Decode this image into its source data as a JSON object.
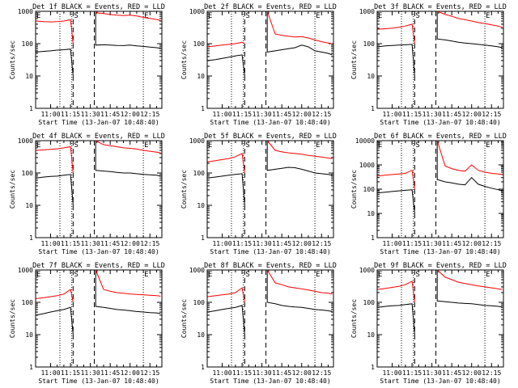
{
  "colors": {
    "events": "#000000",
    "lld": "#ff0000",
    "background": "#ffffff"
  },
  "shared": {
    "x_tick_labels": [
      "11:00",
      "11:15",
      "11:30",
      "11:45",
      "12:00",
      "12:15"
    ],
    "x_tick_values": [
      "11:00",
      "11:15",
      "11:30",
      "11:45",
      "12:00",
      "12:15"
    ],
    "xlabel": "Start Time (13-Jan-07 10:48:40)",
    "ylabel": "Counts/sec",
    "xlim": [
      "10:48:40",
      "12:24:00"
    ],
    "scale": "log",
    "marker_E": "E",
    "marker_S": "S",
    "dotted_lines_at": [
      "11:07",
      "11:16",
      "12:10"
    ],
    "dashed_lines_at": [
      "11:17",
      "11:33"
    ],
    "gap": [
      "11:17",
      "11:33"
    ]
  },
  "chart_data": [
    {
      "type": "line",
      "title": "Det 1f BLACK = Events, RED = LLD",
      "ylim": [
        1,
        1000
      ],
      "y_tick_labels": [
        "1",
        "10",
        "100",
        "1000"
      ],
      "series": [
        {
          "name": "Events",
          "x": [
            "10:49",
            "10:55",
            "11:00",
            "11:05",
            "11:10",
            "11:15",
            "11:17",
            "11:33",
            "11:34",
            "11:40",
            "11:45",
            "11:50",
            "11:55",
            "12:00",
            "12:05",
            "12:10",
            "12:15",
            "12:20",
            "12:23"
          ],
          "values": [
            55,
            58,
            60,
            63,
            65,
            68,
            10,
            10,
            90,
            92,
            90,
            88,
            87,
            90,
            85,
            82,
            78,
            75,
            72
          ]
        },
        {
          "name": "LLD",
          "x": [
            "10:49",
            "10:55",
            "11:00",
            "11:05",
            "11:10",
            "11:15",
            "11:17",
            "11:33",
            "11:34",
            "11:40",
            "11:45",
            "11:50",
            "11:55",
            "12:00",
            "12:05",
            "12:10",
            "12:15",
            "12:20",
            "12:23"
          ],
          "values": [
            500,
            480,
            470,
            480,
            500,
            550,
            100,
            100,
            900,
            850,
            800,
            760,
            740,
            760,
            720,
            650,
            600,
            560,
            520
          ]
        }
      ]
    },
    {
      "type": "line",
      "title": "Det 2f BLACK = Events, RED = LLD",
      "ylim": [
        1,
        1000
      ],
      "y_tick_labels": [
        "1",
        "10",
        "100",
        "1000"
      ],
      "series": [
        {
          "name": "Events",
          "x": [
            "10:49",
            "10:55",
            "11:00",
            "11:05",
            "11:10",
            "11:15",
            "11:17",
            "11:33",
            "11:34",
            "11:40",
            "11:45",
            "11:50",
            "11:55",
            "12:00",
            "12:05",
            "12:10",
            "12:15",
            "12:20",
            "12:23"
          ],
          "values": [
            30,
            32,
            35,
            38,
            42,
            45,
            10,
            10,
            55,
            60,
            65,
            70,
            75,
            90,
            80,
            60,
            55,
            50,
            45
          ]
        },
        {
          "name": "LLD",
          "x": [
            "10:49",
            "10:55",
            "11:00",
            "11:05",
            "11:10",
            "11:15",
            "11:17",
            "11:33",
            "11:34",
            "11:40",
            "11:45",
            "11:50",
            "11:55",
            "12:00",
            "12:05",
            "12:10",
            "12:15",
            "12:20",
            "12:23"
          ],
          "values": [
            80,
            85,
            90,
            95,
            100,
            110,
            100,
            100,
            1000,
            200,
            180,
            170,
            160,
            165,
            150,
            130,
            115,
            105,
            100
          ]
        }
      ]
    },
    {
      "type": "line",
      "title": "Det 3f BLACK = Events, RED = LLD",
      "ylim": [
        1,
        1000
      ],
      "y_tick_labels": [
        "1",
        "10",
        "100",
        "1000"
      ],
      "series": [
        {
          "name": "Events",
          "x": [
            "10:49",
            "10:55",
            "11:00",
            "11:05",
            "11:10",
            "11:15",
            "11:17",
            "11:33",
            "11:34",
            "11:40",
            "11:45",
            "11:50",
            "11:55",
            "12:00",
            "12:05",
            "12:10",
            "12:15",
            "12:20",
            "12:23"
          ],
          "values": [
            80,
            85,
            88,
            90,
            92,
            95,
            10,
            10,
            140,
            130,
            120,
            110,
            105,
            100,
            95,
            90,
            85,
            80,
            75
          ]
        },
        {
          "name": "LLD",
          "x": [
            "10:49",
            "10:55",
            "11:00",
            "11:05",
            "11:10",
            "11:15",
            "11:17",
            "11:33",
            "11:34",
            "11:40",
            "11:45",
            "11:50",
            "11:55",
            "12:00",
            "12:05",
            "12:10",
            "12:15",
            "12:20",
            "12:23"
          ],
          "values": [
            280,
            290,
            300,
            320,
            350,
            400,
            100,
            100,
            1000,
            800,
            700,
            600,
            550,
            500,
            450,
            420,
            380,
            350,
            320
          ]
        }
      ]
    },
    {
      "type": "line",
      "title": "Det 4f BLACK = Events, RED = LLD",
      "ylim": [
        1,
        1000
      ],
      "y_tick_labels": [
        "1",
        "10",
        "100",
        "1000"
      ],
      "series": [
        {
          "name": "Events",
          "x": [
            "10:49",
            "10:55",
            "11:00",
            "11:05",
            "11:10",
            "11:15",
            "11:17",
            "11:33",
            "11:34",
            "11:40",
            "11:45",
            "11:50",
            "11:55",
            "12:00",
            "12:05",
            "12:10",
            "12:15",
            "12:20",
            "12:23"
          ],
          "values": [
            70,
            75,
            78,
            80,
            85,
            90,
            10,
            10,
            120,
            115,
            110,
            105,
            100,
            100,
            95,
            90,
            88,
            85,
            80
          ]
        },
        {
          "name": "LLD",
          "x": [
            "10:49",
            "10:55",
            "11:00",
            "11:05",
            "11:10",
            "11:15",
            "11:17",
            "11:33",
            "11:34",
            "11:40",
            "11:45",
            "11:50",
            "11:55",
            "12:00",
            "12:05",
            "12:10",
            "12:15",
            "12:20",
            "12:23"
          ],
          "values": [
            500,
            520,
            540,
            560,
            600,
            650,
            100,
            100,
            1000,
            750,
            700,
            650,
            600,
            580,
            550,
            500,
            470,
            440,
            420
          ]
        }
      ]
    },
    {
      "type": "line",
      "title": "Det 5f BLACK = Events, RED = LLD",
      "ylim": [
        1,
        1000
      ],
      "y_tick_labels": [
        "1",
        "10",
        "100",
        "1000"
      ],
      "series": [
        {
          "name": "Events",
          "x": [
            "10:49",
            "10:55",
            "11:00",
            "11:05",
            "11:10",
            "11:15",
            "11:17",
            "11:33",
            "11:34",
            "11:40",
            "11:45",
            "11:50",
            "11:55",
            "12:00",
            "12:05",
            "12:10",
            "12:15",
            "12:20",
            "12:23"
          ],
          "values": [
            70,
            75,
            80,
            85,
            90,
            95,
            10,
            10,
            120,
            130,
            140,
            150,
            145,
            130,
            115,
            100,
            95,
            90,
            85
          ]
        },
        {
          "name": "LLD",
          "x": [
            "10:49",
            "10:55",
            "11:00",
            "11:05",
            "11:10",
            "11:15",
            "11:17",
            "11:33",
            "11:34",
            "11:40",
            "11:45",
            "11:50",
            "11:55",
            "12:00",
            "12:05",
            "12:10",
            "12:15",
            "12:20",
            "12:23"
          ],
          "values": [
            220,
            240,
            260,
            280,
            320,
            400,
            100,
            100,
            1000,
            500,
            450,
            420,
            400,
            380,
            350,
            330,
            310,
            290,
            280
          ]
        }
      ]
    },
    {
      "type": "line",
      "title": "Det 6f BLACK = Events, RED = LLD",
      "ylim": [
        1,
        10000
      ],
      "y_tick_labels": [
        "1",
        "10",
        "100",
        "1000",
        "10000"
      ],
      "series": [
        {
          "name": "Events",
          "x": [
            "10:49",
            "10:55",
            "11:00",
            "11:05",
            "11:10",
            "11:15",
            "11:17",
            "11:33",
            "11:34",
            "11:40",
            "11:45",
            "11:50",
            "11:55",
            "12:00",
            "12:05",
            "12:10",
            "12:15",
            "12:20",
            "12:23"
          ],
          "values": [
            70,
            75,
            80,
            85,
            90,
            95,
            10,
            10,
            250,
            200,
            180,
            160,
            150,
            300,
            160,
            130,
            110,
            95,
            85
          ]
        },
        {
          "name": "LLD",
          "x": [
            "10:49",
            "10:55",
            "11:00",
            "11:05",
            "11:10",
            "11:15",
            "11:17",
            "11:33",
            "11:34",
            "11:40",
            "11:45",
            "11:50",
            "11:55",
            "12:00",
            "12:05",
            "12:10",
            "12:15",
            "12:20",
            "12:23"
          ],
          "values": [
            350,
            380,
            400,
            420,
            450,
            600,
            100,
            100,
            10000,
            900,
            700,
            600,
            550,
            1000,
            600,
            500,
            450,
            420,
            400
          ]
        }
      ]
    },
    {
      "type": "line",
      "title": "Det 7f BLACK = Events, RED = LLD",
      "ylim": [
        1,
        1000
      ],
      "y_tick_labels": [
        "1",
        "10",
        "100",
        "1000"
      ],
      "series": [
        {
          "name": "Events",
          "x": [
            "10:49",
            "10:55",
            "11:00",
            "11:05",
            "11:10",
            "11:15",
            "11:17",
            "11:33",
            "11:34",
            "11:40",
            "11:45",
            "11:50",
            "11:55",
            "12:00",
            "12:05",
            "12:10",
            "12:15",
            "12:20",
            "12:23"
          ],
          "values": [
            40,
            45,
            50,
            55,
            60,
            70,
            10,
            10,
            75,
            70,
            65,
            60,
            58,
            55,
            52,
            50,
            48,
            47,
            45
          ]
        },
        {
          "name": "LLD",
          "x": [
            "10:49",
            "10:55",
            "11:00",
            "11:05",
            "11:10",
            "11:15",
            "11:17",
            "11:33",
            "11:34",
            "11:40",
            "11:45",
            "11:50",
            "11:55",
            "12:00",
            "12:05",
            "12:10",
            "12:15",
            "12:20",
            "12:23"
          ],
          "values": [
            130,
            140,
            150,
            160,
            180,
            250,
            100,
            100,
            1000,
            250,
            220,
            200,
            190,
            180,
            175,
            170,
            165,
            160,
            155
          ]
        }
      ]
    },
    {
      "type": "line",
      "title": "Det 8f BLACK = Events, RED = LLD",
      "ylim": [
        1,
        1000
      ],
      "y_tick_labels": [
        "1",
        "10",
        "100",
        "1000"
      ],
      "series": [
        {
          "name": "Events",
          "x": [
            "10:49",
            "10:55",
            "11:00",
            "11:05",
            "11:10",
            "11:15",
            "11:17",
            "11:33",
            "11:34",
            "11:40",
            "11:45",
            "11:50",
            "11:55",
            "12:00",
            "12:05",
            "12:10",
            "12:15",
            "12:20",
            "12:23"
          ],
          "values": [
            50,
            55,
            60,
            65,
            70,
            80,
            10,
            10,
            100,
            90,
            80,
            75,
            72,
            70,
            65,
            60,
            58,
            55,
            52
          ]
        },
        {
          "name": "LLD",
          "x": [
            "10:49",
            "10:55",
            "11:00",
            "11:05",
            "11:10",
            "11:15",
            "11:17",
            "11:33",
            "11:34",
            "11:40",
            "11:45",
            "11:50",
            "11:55",
            "12:00",
            "12:05",
            "12:10",
            "12:15",
            "12:20",
            "12:23"
          ],
          "values": [
            150,
            160,
            170,
            180,
            200,
            280,
            100,
            100,
            1000,
            400,
            350,
            300,
            280,
            260,
            240,
            220,
            200,
            190,
            180
          ]
        }
      ]
    },
    {
      "type": "line",
      "title": "Det 9f BLACK = Events, RED = LLD",
      "ylim": [
        1,
        1000
      ],
      "y_tick_labels": [
        "1",
        "10",
        "100",
        "1000"
      ],
      "series": [
        {
          "name": "Events",
          "x": [
            "10:49",
            "10:55",
            "11:00",
            "11:05",
            "11:10",
            "11:15",
            "11:17",
            "11:33",
            "11:34",
            "11:40",
            "11:45",
            "11:50",
            "11:55",
            "12:00",
            "12:05",
            "12:10",
            "12:15",
            "12:20",
            "12:23"
          ],
          "values": [
            70,
            75,
            78,
            80,
            85,
            90,
            10,
            10,
            110,
            105,
            100,
            95,
            92,
            90,
            85,
            80,
            78,
            75,
            72
          ]
        },
        {
          "name": "LLD",
          "x": [
            "10:49",
            "10:55",
            "11:00",
            "11:05",
            "11:10",
            "11:15",
            "11:17",
            "11:33",
            "11:34",
            "11:40",
            "11:45",
            "11:50",
            "11:55",
            "12:00",
            "12:05",
            "12:10",
            "12:15",
            "12:20",
            "12:23"
          ],
          "values": [
            250,
            270,
            290,
            310,
            350,
            450,
            100,
            100,
            1000,
            600,
            500,
            420,
            380,
            350,
            320,
            300,
            280,
            260,
            250
          ]
        }
      ]
    }
  ]
}
